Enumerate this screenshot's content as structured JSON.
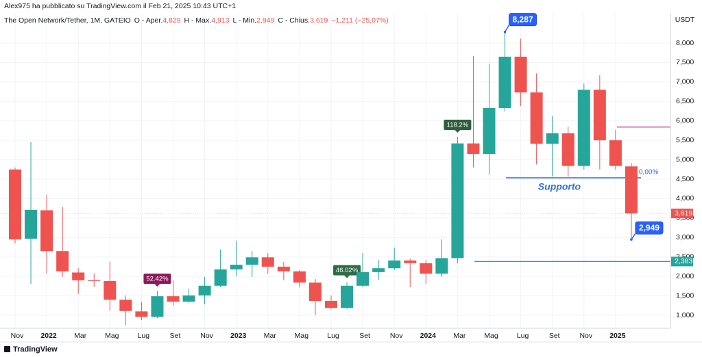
{
  "header": {
    "byline": "Alex975 ha pubblicato su TradingView.com il Feb 21, 2025 10:43 UTC+1",
    "symbol": "The Open Network/Tether, 1M, GATEIO",
    "ohlc": [
      {
        "key": "O - Aper.",
        "value": "4,829"
      },
      {
        "key": "H - Max.",
        "value": "4,913"
      },
      {
        "key": "L - Min.",
        "value": "2,949"
      },
      {
        "key": "C - Chius.",
        "value": "3,619"
      }
    ],
    "change": "−1,211 (−25,07%)",
    "currency": "USDT"
  },
  "footer": {
    "brand": "TradingView"
  },
  "chart_data": {
    "type": "candlestick",
    "categories": [
      "Nov",
      null,
      "2022",
      null,
      "Mar",
      null,
      "Mag",
      null,
      "Lug",
      null,
      "Set",
      null,
      "Nov",
      null,
      "2023",
      null,
      "Mar",
      null,
      "Mag",
      null,
      "Lug",
      null,
      "Set",
      null,
      "Nov",
      null,
      "2024",
      null,
      "Mar",
      null,
      "Mag",
      null,
      "Lug",
      null,
      "Set",
      null,
      "Nov",
      null,
      "2025",
      null
    ],
    "open": [
      4750,
      2970,
      3700,
      2650,
      2100,
      1900,
      1880,
      1400,
      1100,
      960,
      1490,
      1350,
      1510,
      1760,
      2180,
      2300,
      2490,
      2250,
      2130,
      1840,
      1370,
      1190,
      1760,
      2110,
      2210,
      2410,
      2340,
      2070,
      2470,
      5420,
      5150,
      6330,
      7650,
      6730,
      5410,
      5680,
      4840,
      6800,
      5500,
      4829
    ],
    "high": [
      4800,
      5450,
      4100,
      3780,
      2210,
      2080,
      2380,
      1510,
      1350,
      1630,
      1900,
      1690,
      1990,
      2690,
      2920,
      2650,
      2600,
      2370,
      2160,
      1930,
      1510,
      1850,
      2600,
      2420,
      2740,
      2460,
      2420,
      2950,
      5590,
      7670,
      7470,
      8287,
      8110,
      7220,
      6120,
      5850,
      6960,
      7170,
      5770,
      4913
    ],
    "low": [
      2850,
      1810,
      2070,
      1990,
      1550,
      1730,
      1110,
      750,
      880,
      930,
      1250,
      1320,
      1280,
      1720,
      2000,
      1990,
      2070,
      1900,
      1720,
      1000,
      1160,
      1160,
      1720,
      1900,
      2160,
      1720,
      1810,
      1990,
      2340,
      4800,
      4620,
      6240,
      6380,
      4880,
      4570,
      4570,
      4750,
      4750,
      4750,
      2949
    ],
    "close": [
      2950,
      3710,
      2650,
      2130,
      1900,
      1880,
      1400,
      1110,
      960,
      1490,
      1350,
      1510,
      1760,
      2180,
      2300,
      2490,
      2250,
      2130,
      1840,
      1370,
      1190,
      1760,
      2110,
      2210,
      2410,
      2340,
      2070,
      2470,
      5420,
      5150,
      6330,
      7650,
      6730,
      5410,
      5680,
      4840,
      6800,
      5500,
      4840,
      3619
    ],
    "up_color": "#26a69a",
    "down_color": "#ef5350",
    "change_labels": [
      null,
      null,
      null,
      null,
      null,
      null,
      null,
      null,
      null,
      {
        "label": "52.42%",
        "color": "#8b1a5a"
      },
      null,
      null,
      null,
      null,
      null,
      null,
      null,
      null,
      null,
      null,
      null,
      {
        "label": "46.02%",
        "color": "#2e6b45"
      },
      null,
      null,
      null,
      null,
      null,
      null,
      {
        "label": "118.2%",
        "color": "#2e5e3e"
      },
      null,
      null,
      null,
      null,
      null,
      null,
      null,
      null,
      null,
      null,
      null
    ],
    "callouts": [
      {
        "value": 8287,
        "label": "8,287",
        "of": "high"
      },
      {
        "value": 2949,
        "label": "2,949",
        "of": "low"
      }
    ],
    "levels": [
      {
        "value": 5840,
        "color": "#c85fb5"
      },
      {
        "value": 4535,
        "color": "#2f6fd6",
        "label": "Supporto",
        "pct_label": "0,00%"
      },
      {
        "value": 2383,
        "color": "#26a69a"
      }
    ],
    "axis_labels": [
      {
        "value": 3619,
        "label": "3,619",
        "color": "#ef5350"
      },
      {
        "value": 2383,
        "label": "2,383",
        "color": "#26a69a"
      }
    ],
    "ylim": [
      666,
      8756
    ],
    "yticks": [
      {
        "value": 1000,
        "label": "1,000"
      },
      {
        "value": 1500,
        "label": "1,500"
      },
      {
        "value": 2000,
        "label": "2,000"
      },
      {
        "value": 2500,
        "label": "2,500"
      },
      {
        "value": 3000,
        "label": "3,000"
      },
      {
        "value": 3500,
        "label": "3,500"
      },
      {
        "value": 4000,
        "label": "4,000"
      },
      {
        "value": 4500,
        "label": "4,500"
      },
      {
        "value": 5000,
        "label": "5,000"
      },
      {
        "value": 5500,
        "label": "5,500"
      },
      {
        "value": 6000,
        "label": "6,000"
      },
      {
        "value": 6500,
        "label": "6,500"
      },
      {
        "value": 7000,
        "label": "7,000"
      },
      {
        "value": 7500,
        "label": "7,500"
      },
      {
        "value": 8000,
        "label": "8,000"
      }
    ],
    "grid": true
  }
}
